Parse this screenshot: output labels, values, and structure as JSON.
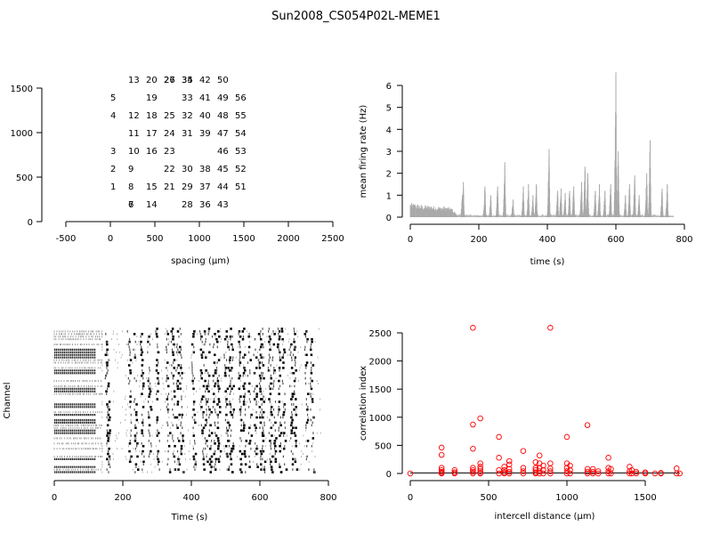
{
  "title": "Sun2008_CS054P02L-MEME1",
  "chart_data": [
    {
      "type": "scatter",
      "panel": "electrode-layout",
      "title": "",
      "xlabel": "spacing (µm)",
      "ylabel": "",
      "xlim": [
        -500,
        2500
      ],
      "ylim": [
        0,
        1500
      ],
      "xticks": [
        "-500",
        "0",
        "500",
        "1000",
        "1500",
        "2000",
        "2500"
      ],
      "yticks": [
        "0",
        "500",
        "1000",
        "1500"
      ],
      "labels": [
        {
          "t": "1",
          "x": 200,
          "y": 400
        },
        {
          "t": "2",
          "x": 200,
          "y": 600
        },
        {
          "t": "3",
          "x": 200,
          "y": 800
        },
        {
          "t": "4",
          "x": 200,
          "y": 1200
        },
        {
          "t": "5",
          "x": 200,
          "y": 1400
        },
        {
          "t": "6",
          "x": 400,
          "y": 200
        },
        {
          "t": "7",
          "x": 400,
          "y": 200
        },
        {
          "t": "8",
          "x": 400,
          "y": 400
        },
        {
          "t": "9",
          "x": 400,
          "y": 600
        },
        {
          "t": "10",
          "x": 400,
          "y": 800
        },
        {
          "t": "11",
          "x": 400,
          "y": 1000
        },
        {
          "t": "12",
          "x": 400,
          "y": 1200
        },
        {
          "t": "13",
          "x": 400,
          "y": 1600
        },
        {
          "t": "14",
          "x": 600,
          "y": 200
        },
        {
          "t": "15",
          "x": 600,
          "y": 400
        },
        {
          "t": "16",
          "x": 600,
          "y": 800
        },
        {
          "t": "17",
          "x": 600,
          "y": 1000
        },
        {
          "t": "18",
          "x": 600,
          "y": 1200
        },
        {
          "t": "19",
          "x": 600,
          "y": 1400
        },
        {
          "t": "20",
          "x": 600,
          "y": 1600
        },
        {
          "t": "21",
          "x": 800,
          "y": 400
        },
        {
          "t": "22",
          "x": 800,
          "y": 600
        },
        {
          "t": "23",
          "x": 800,
          "y": 800
        },
        {
          "t": "24",
          "x": 800,
          "y": 1000
        },
        {
          "t": "25",
          "x": 800,
          "y": 1200
        },
        {
          "t": "26",
          "x": 800,
          "y": 1600
        },
        {
          "t": "27",
          "x": 800,
          "y": 1600
        },
        {
          "t": "28",
          "x": 1000,
          "y": 200
        },
        {
          "t": "29",
          "x": 1000,
          "y": 400
        },
        {
          "t": "30",
          "x": 1000,
          "y": 600
        },
        {
          "t": "31",
          "x": 1000,
          "y": 1000
        },
        {
          "t": "32",
          "x": 1000,
          "y": 1200
        },
        {
          "t": "33",
          "x": 1000,
          "y": 1400
        },
        {
          "t": "34",
          "x": 1000,
          "y": 1600
        },
        {
          "t": "35",
          "x": 1000,
          "y": 1600
        },
        {
          "t": "36",
          "x": 1200,
          "y": 200
        },
        {
          "t": "37",
          "x": 1200,
          "y": 400
        },
        {
          "t": "38",
          "x": 1200,
          "y": 600
        },
        {
          "t": "39",
          "x": 1200,
          "y": 1000
        },
        {
          "t": "40",
          "x": 1200,
          "y": 1200
        },
        {
          "t": "41",
          "x": 1200,
          "y": 1400
        },
        {
          "t": "42",
          "x": 1200,
          "y": 1600
        },
        {
          "t": "43",
          "x": 1400,
          "y": 200
        },
        {
          "t": "44",
          "x": 1400,
          "y": 400
        },
        {
          "t": "45",
          "x": 1400,
          "y": 600
        },
        {
          "t": "46",
          "x": 1400,
          "y": 800
        },
        {
          "t": "47",
          "x": 1400,
          "y": 1000
        },
        {
          "t": "48",
          "x": 1400,
          "y": 1200
        },
        {
          "t": "49",
          "x": 1400,
          "y": 1400
        },
        {
          "t": "50",
          "x": 1400,
          "y": 1600
        },
        {
          "t": "51",
          "x": 1600,
          "y": 400
        },
        {
          "t": "52",
          "x": 1600,
          "y": 600
        },
        {
          "t": "53",
          "x": 1600,
          "y": 800
        },
        {
          "t": "54",
          "x": 1600,
          "y": 1000
        },
        {
          "t": "55",
          "x": 1600,
          "y": 1200
        },
        {
          "t": "56",
          "x": 1600,
          "y": 1400
        }
      ]
    },
    {
      "type": "bar",
      "panel": "firing-rate",
      "title": "",
      "xlabel": "time (s)",
      "ylabel": "mean firing rate (Hz)",
      "xlim": [
        0,
        800
      ],
      "ylim": [
        0,
        6.6
      ],
      "xticks": [
        "0",
        "200",
        "400",
        "600",
        "800"
      ],
      "yticks": [
        "0",
        "1",
        "2",
        "3",
        "4",
        "5",
        "6"
      ],
      "bar_color": "#a9a9a9",
      "baseline": [
        [
          0,
          0.6
        ],
        [
          20,
          0.55
        ],
        [
          40,
          0.5
        ],
        [
          60,
          0.5
        ],
        [
          80,
          0.45
        ],
        [
          100,
          0.45
        ],
        [
          120,
          0.4
        ],
        [
          140,
          0.05
        ]
      ],
      "bursts": [
        {
          "t": 152,
          "peak": 1.0
        },
        {
          "t": 155,
          "peak": 1.6
        },
        {
          "t": 218,
          "peak": 1.4
        },
        {
          "t": 235,
          "peak": 1.0
        },
        {
          "t": 255,
          "peak": 1.4
        },
        {
          "t": 276,
          "peak": 2.5
        },
        {
          "t": 300,
          "peak": 0.8
        },
        {
          "t": 330,
          "peak": 1.4
        },
        {
          "t": 345,
          "peak": 1.5
        },
        {
          "t": 358,
          "peak": 1.0
        },
        {
          "t": 368,
          "peak": 1.5
        },
        {
          "t": 405,
          "peak": 3.1
        },
        {
          "t": 430,
          "peak": 1.2
        },
        {
          "t": 440,
          "peak": 1.3
        },
        {
          "t": 452,
          "peak": 1.1
        },
        {
          "t": 465,
          "peak": 1.2
        },
        {
          "t": 477,
          "peak": 1.4
        },
        {
          "t": 500,
          "peak": 1.6
        },
        {
          "t": 510,
          "peak": 2.3
        },
        {
          "t": 518,
          "peak": 2.0
        },
        {
          "t": 540,
          "peak": 1.2
        },
        {
          "t": 552,
          "peak": 1.5
        },
        {
          "t": 568,
          "peak": 1.2
        },
        {
          "t": 585,
          "peak": 1.5
        },
        {
          "t": 600,
          "peak": 6.6
        },
        {
          "t": 607,
          "peak": 3.0
        },
        {
          "t": 628,
          "peak": 1.0
        },
        {
          "t": 640,
          "peak": 1.5
        },
        {
          "t": 655,
          "peak": 1.9
        },
        {
          "t": 668,
          "peak": 1.0
        },
        {
          "t": 690,
          "peak": 2.0
        },
        {
          "t": 700,
          "peak": 3.5
        },
        {
          "t": 735,
          "peak": 1.3
        },
        {
          "t": 750,
          "peak": 1.5
        }
      ]
    },
    {
      "type": "raster",
      "panel": "spike-raster",
      "title": "",
      "xlabel": "Time (s)",
      "ylabel": "Channel",
      "xlim": [
        0,
        800
      ],
      "xticks": [
        "0",
        "200",
        "400",
        "600",
        "800"
      ],
      "n_channels": 56,
      "early_activity_until": 140,
      "burst_times": [
        152,
        155,
        218,
        235,
        255,
        276,
        300,
        330,
        345,
        358,
        368,
        405,
        430,
        440,
        452,
        465,
        477,
        500,
        510,
        518,
        540,
        552,
        568,
        585,
        600,
        607,
        628,
        640,
        655,
        668,
        690,
        700,
        735,
        750
      ]
    },
    {
      "type": "scatter",
      "panel": "correlation",
      "title": "",
      "xlabel": "intercell distance (µm)",
      "ylabel": "correlation index",
      "xlim": [
        0,
        1700
      ],
      "ylim": [
        0,
        2600
      ],
      "xticks": [
        "0",
        "500",
        "1000",
        "1500"
      ],
      "yticks": [
        "0",
        "500",
        "1000",
        "1500",
        "2000",
        "2500"
      ],
      "marker_color": "#ff0000",
      "points": [
        [
          0,
          0
        ],
        [
          200,
          460
        ],
        [
          200,
          330
        ],
        [
          200,
          100
        ],
        [
          200,
          60
        ],
        [
          200,
          30
        ],
        [
          200,
          10
        ],
        [
          200,
          0
        ],
        [
          283,
          60
        ],
        [
          283,
          20
        ],
        [
          283,
          0
        ],
        [
          400,
          2590
        ],
        [
          400,
          870
        ],
        [
          400,
          440
        ],
        [
          400,
          100
        ],
        [
          400,
          60
        ],
        [
          400,
          30
        ],
        [
          400,
          0
        ],
        [
          447,
          980
        ],
        [
          447,
          180
        ],
        [
          447,
          120
        ],
        [
          447,
          80
        ],
        [
          447,
          40
        ],
        [
          447,
          10
        ],
        [
          447,
          0
        ],
        [
          566,
          650
        ],
        [
          566,
          280
        ],
        [
          566,
          60
        ],
        [
          566,
          0
        ],
        [
          600,
          120
        ],
        [
          600,
          60
        ],
        [
          600,
          20
        ],
        [
          600,
          0
        ],
        [
          632,
          220
        ],
        [
          632,
          160
        ],
        [
          632,
          80
        ],
        [
          632,
          30
        ],
        [
          632,
          0
        ],
        [
          721,
          400
        ],
        [
          721,
          100
        ],
        [
          721,
          40
        ],
        [
          721,
          0
        ],
        [
          800,
          200
        ],
        [
          800,
          100
        ],
        [
          800,
          60
        ],
        [
          800,
          20
        ],
        [
          800,
          0
        ],
        [
          825,
          320
        ],
        [
          825,
          180
        ],
        [
          825,
          100
        ],
        [
          825,
          40
        ],
        [
          825,
          0
        ],
        [
          849,
          140
        ],
        [
          849,
          60
        ],
        [
          849,
          0
        ],
        [
          894,
          2590
        ],
        [
          894,
          180
        ],
        [
          894,
          90
        ],
        [
          894,
          40
        ],
        [
          894,
          0
        ],
        [
          1000,
          650
        ],
        [
          1000,
          180
        ],
        [
          1000,
          100
        ],
        [
          1000,
          40
        ],
        [
          1000,
          0
        ],
        [
          1020,
          140
        ],
        [
          1020,
          60
        ],
        [
          1020,
          0
        ],
        [
          1131,
          860
        ],
        [
          1131,
          80
        ],
        [
          1131,
          30
        ],
        [
          1131,
          0
        ],
        [
          1166,
          80
        ],
        [
          1166,
          30
        ],
        [
          1166,
          0
        ],
        [
          1200,
          40
        ],
        [
          1200,
          0
        ],
        [
          1265,
          280
        ],
        [
          1265,
          100
        ],
        [
          1265,
          40
        ],
        [
          1265,
          0
        ],
        [
          1281,
          80
        ],
        [
          1281,
          0
        ],
        [
          1400,
          120
        ],
        [
          1400,
          40
        ],
        [
          1400,
          0
        ],
        [
          1414,
          60
        ],
        [
          1414,
          0
        ],
        [
          1442,
          30
        ],
        [
          1442,
          0
        ],
        [
          1500,
          20
        ],
        [
          1500,
          0
        ],
        [
          1562,
          0
        ],
        [
          1600,
          10
        ],
        [
          1600,
          0
        ],
        [
          1700,
          90
        ],
        [
          1700,
          0
        ],
        [
          1720,
          0
        ]
      ]
    }
  ]
}
